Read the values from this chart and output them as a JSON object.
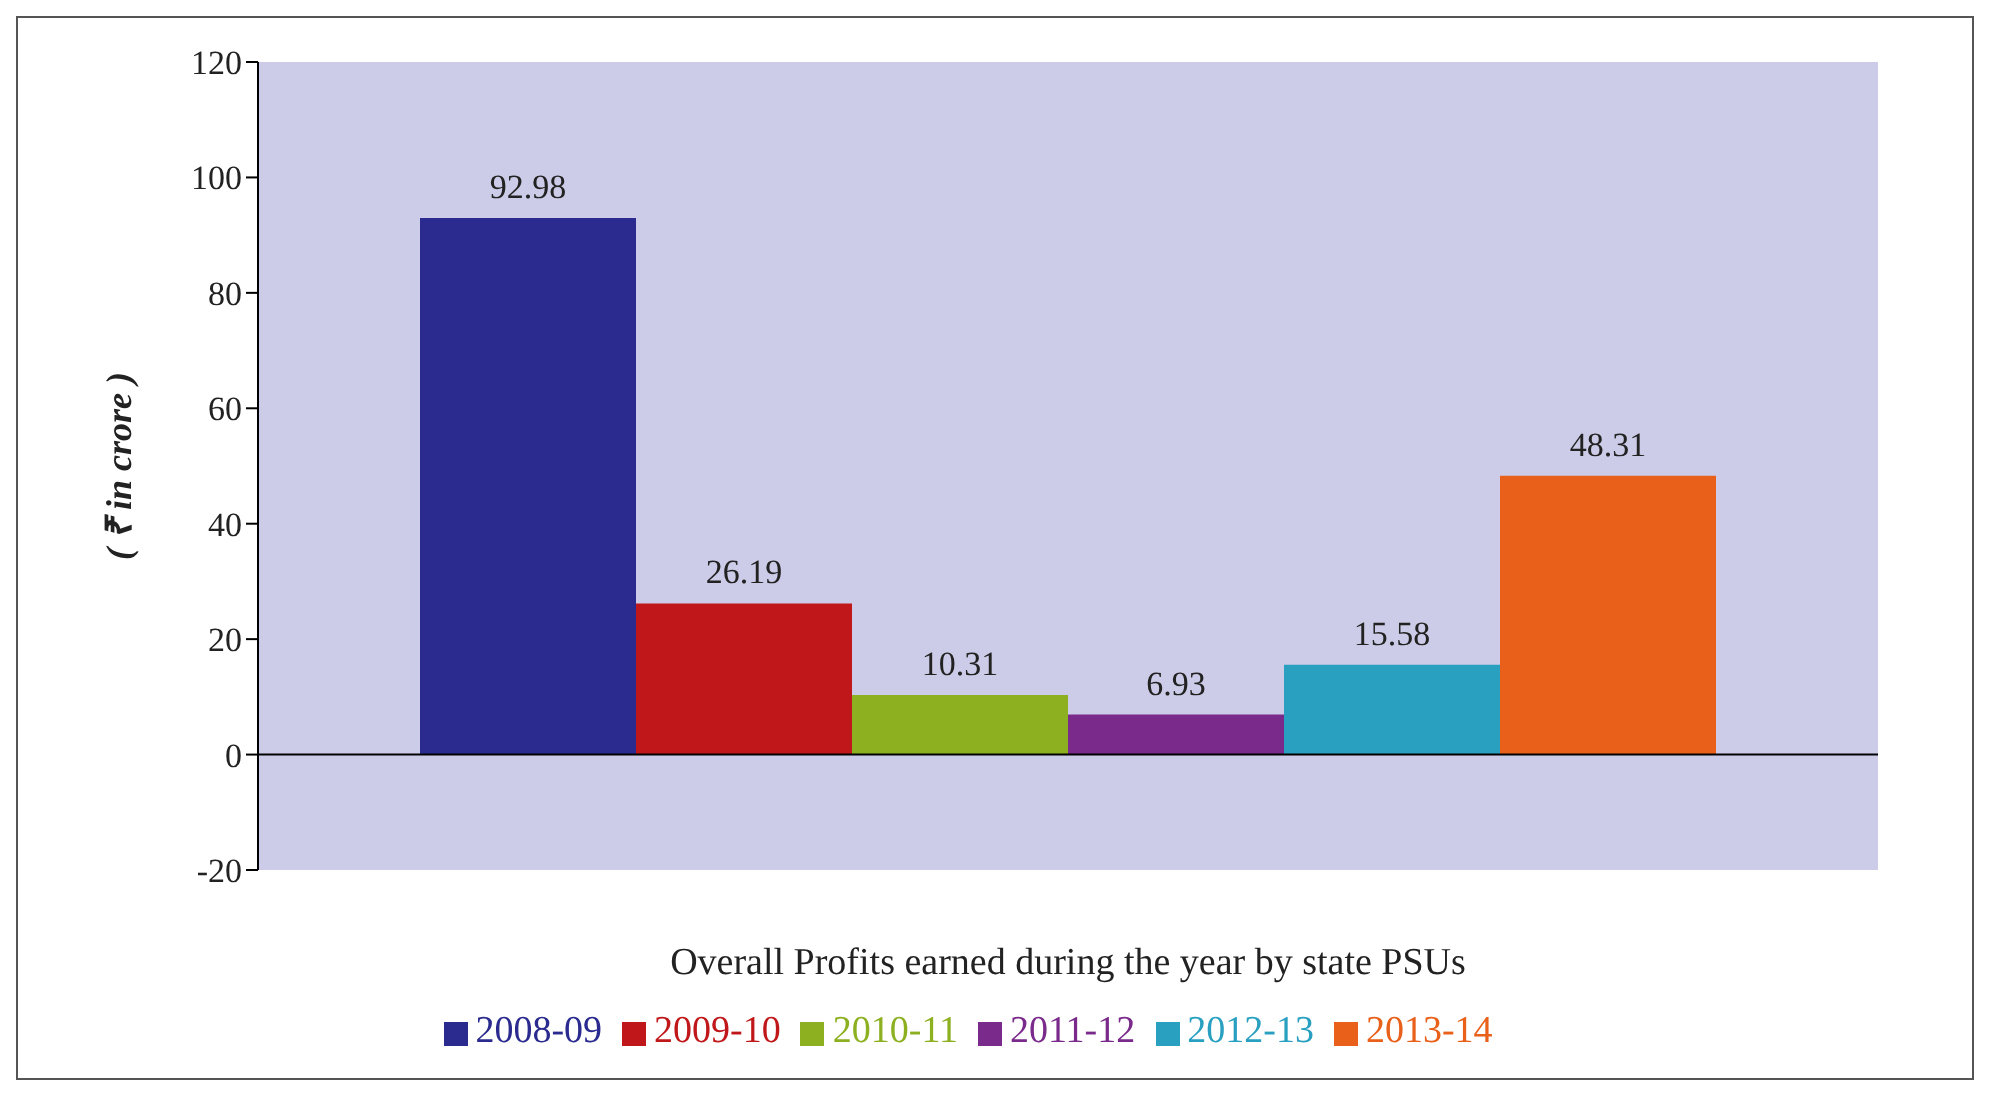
{
  "chart_data": {
    "type": "bar",
    "xlabel": "Overall Profits earned during the year by state PSUs",
    "ylabel": "( ₹ in crore )",
    "categories": [
      null
    ],
    "series": [
      {
        "name": "2008-09",
        "color": "#2b2b8f",
        "values": [
          92.98
        ]
      },
      {
        "name": "2009-10",
        "color": "#c0181a",
        "values": [
          26.19
        ]
      },
      {
        "name": "2010-11",
        "color": "#8db020",
        "values": [
          10.31
        ]
      },
      {
        "name": "2011-12",
        "color": "#7a2a8a",
        "values": [
          6.93
        ]
      },
      {
        "name": "2012-13",
        "color": "#2aa0c0",
        "values": [
          15.58
        ]
      },
      {
        "name": "2013-14",
        "color": "#e8601a",
        "values": [
          48.31
        ]
      }
    ],
    "ylim": [
      -20,
      120
    ],
    "yticks": [
      -20,
      0,
      20,
      40,
      60,
      80,
      100,
      120
    ],
    "ref_lines": [
      {
        "axis": "y",
        "value": 0,
        "color": "#000000"
      }
    ],
    "data_labels": true,
    "legend": "bottom",
    "grid": false
  }
}
